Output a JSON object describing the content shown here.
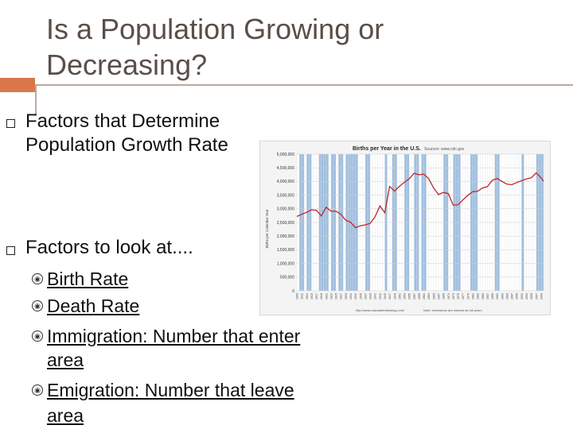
{
  "slide": {
    "title_line1": "Is a Population Growing or",
    "title_line2": "Decreasing?",
    "bullet1_line1": "Factors that Determine",
    "bullet1_line2": "Population Growth Rate",
    "bullet2": "Factors to look at....",
    "sub": [
      {
        "text": "Birth Rate"
      },
      {
        "text": "Death Rate"
      },
      {
        "text": "Immigration: Number that enter",
        "cont": "area"
      },
      {
        "text": "Emigration: Number that leave",
        "cont": "area"
      }
    ]
  },
  "chart_data": {
    "type": "line",
    "title": "Births per Year in the U.S.",
    "source_label": "Sources: www.cdc.gov",
    "ylabel": "Births per Calendar Year",
    "ylim": [
      0,
      5000000
    ],
    "yticks": [
      "0",
      "500,000",
      "1,000,000",
      "1,500,000",
      "2,000,000",
      "2,500,000",
      "3,000,000",
      "3,500,000",
      "4,000,000",
      "4,500,000",
      "5,000,000"
    ],
    "footer_left": "http://www.calculatedriskblog.com/",
    "footer_right": "Note: recessions are marked as full years",
    "line_color": "#c0262e",
    "recession_color": "#9fbfe0",
    "x": [
      1909,
      1911,
      1913,
      1915,
      1917,
      1919,
      1921,
      1923,
      1925,
      1927,
      1929,
      1931,
      1933,
      1935,
      1937,
      1939,
      1941,
      1943,
      1945,
      1947,
      1949,
      1951,
      1953,
      1955,
      1957,
      1959,
      1961,
      1963,
      1965,
      1967,
      1969,
      1971,
      1973,
      1975,
      1977,
      1979,
      1981,
      1983,
      1985,
      1987,
      1989,
      1991,
      1993,
      1995,
      1997,
      1999,
      2001,
      2003,
      2005,
      2007,
      2009,
      2010
    ],
    "values": [
      2718000,
      2800000,
      2870000,
      2965000,
      2944000,
      2740000,
      3055000,
      2910000,
      2909000,
      2802000,
      2582000,
      2506000,
      2307000,
      2377000,
      2413000,
      2466000,
      2703000,
      3104000,
      2858000,
      3817000,
      3649000,
      3823000,
      3965000,
      4097000,
      4300000,
      4245000,
      4268000,
      4098000,
      3760000,
      3520000,
      3600000,
      3556000,
      3137000,
      3144000,
      3327000,
      3494000,
      3629000,
      3639000,
      3761000,
      3809000,
      4041000,
      4111000,
      4000000,
      3900000,
      3881000,
      3959000,
      4026000,
      4090000,
      4138000,
      4316000,
      4130000,
      4007000
    ],
    "recessions": [
      [
        1910,
        1911
      ],
      [
        1913,
        1914
      ],
      [
        1918,
        1919
      ],
      [
        1920,
        1921
      ],
      [
        1923,
        1924
      ],
      [
        1926,
        1927
      ],
      [
        1929,
        1933
      ],
      [
        1937,
        1938
      ],
      [
        1945,
        1945
      ],
      [
        1948,
        1949
      ],
      [
        1953,
        1954
      ],
      [
        1957,
        1958
      ],
      [
        1960,
        1961
      ],
      [
        1969,
        1970
      ],
      [
        1973,
        1975
      ],
      [
        1980,
        1980
      ],
      [
        1981,
        1982
      ],
      [
        1990,
        1991
      ],
      [
        2001,
        2001
      ],
      [
        2007,
        2009
      ]
    ],
    "xlim": [
      1909,
      2010
    ]
  }
}
